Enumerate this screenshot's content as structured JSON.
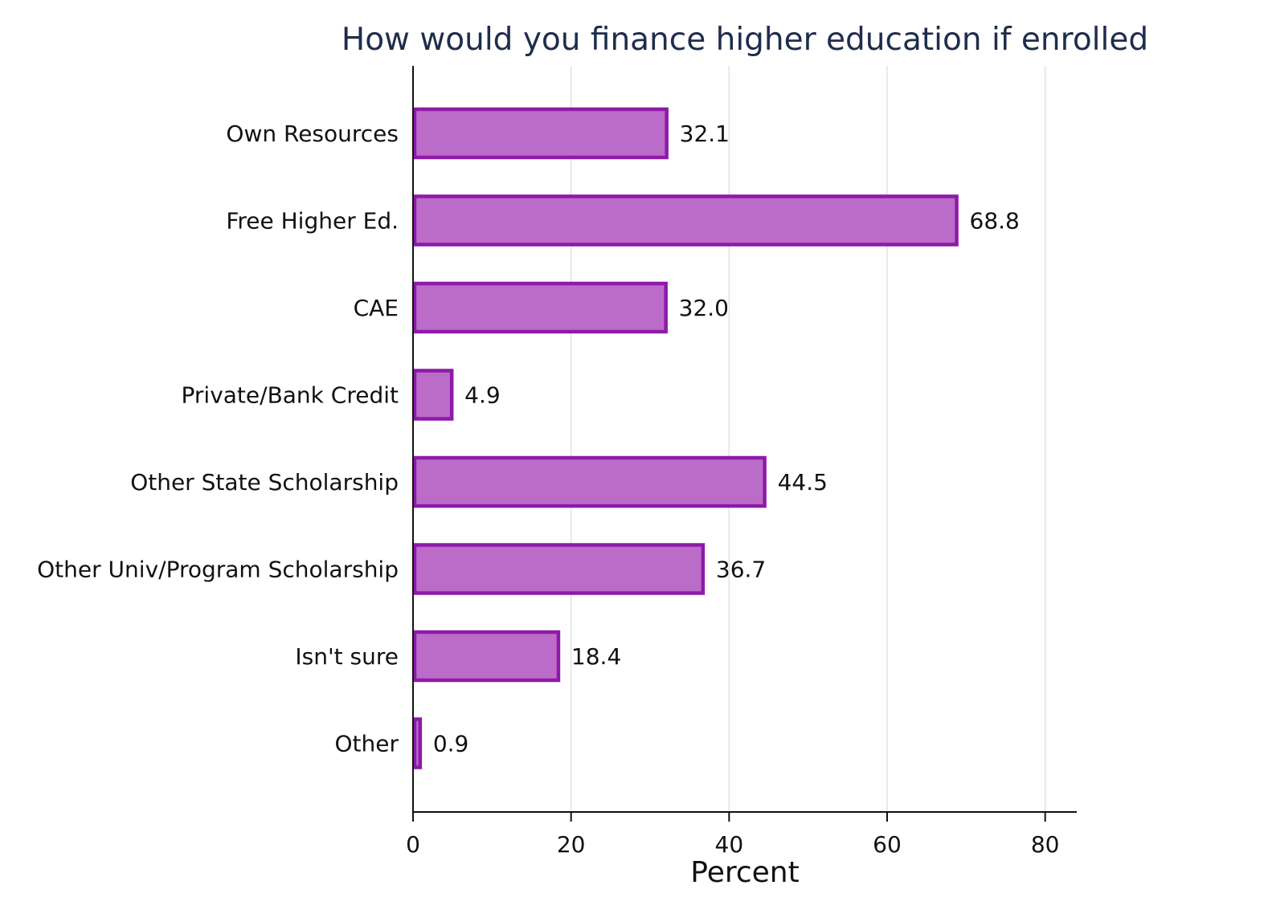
{
  "chart_data": {
    "type": "bar",
    "orientation": "horizontal",
    "title": "How would you finance higher education if enrolled",
    "xlabel": "Percent",
    "ylabel": "",
    "categories": [
      "Own Resources",
      "Free Higher Ed.",
      "CAE",
      "Private/Bank Credit",
      "Other State Scholarship",
      "Other Univ/Program Scholarship",
      "Isn't sure",
      "Other"
    ],
    "values": [
      32.1,
      68.8,
      32.0,
      4.9,
      44.5,
      36.7,
      18.4,
      0.9
    ],
    "value_labels": [
      "32.1",
      "68.8",
      "32.0",
      "4.9",
      "44.5",
      "36.7",
      "18.4",
      "0.9"
    ],
    "xlim": [
      0,
      84
    ],
    "xticks": [
      0,
      20,
      40,
      60,
      80
    ],
    "grid": true,
    "bar_fill": "#bb6cc9",
    "bar_edge": "#8e1aa8",
    "title_color": "#1f2d4d"
  }
}
